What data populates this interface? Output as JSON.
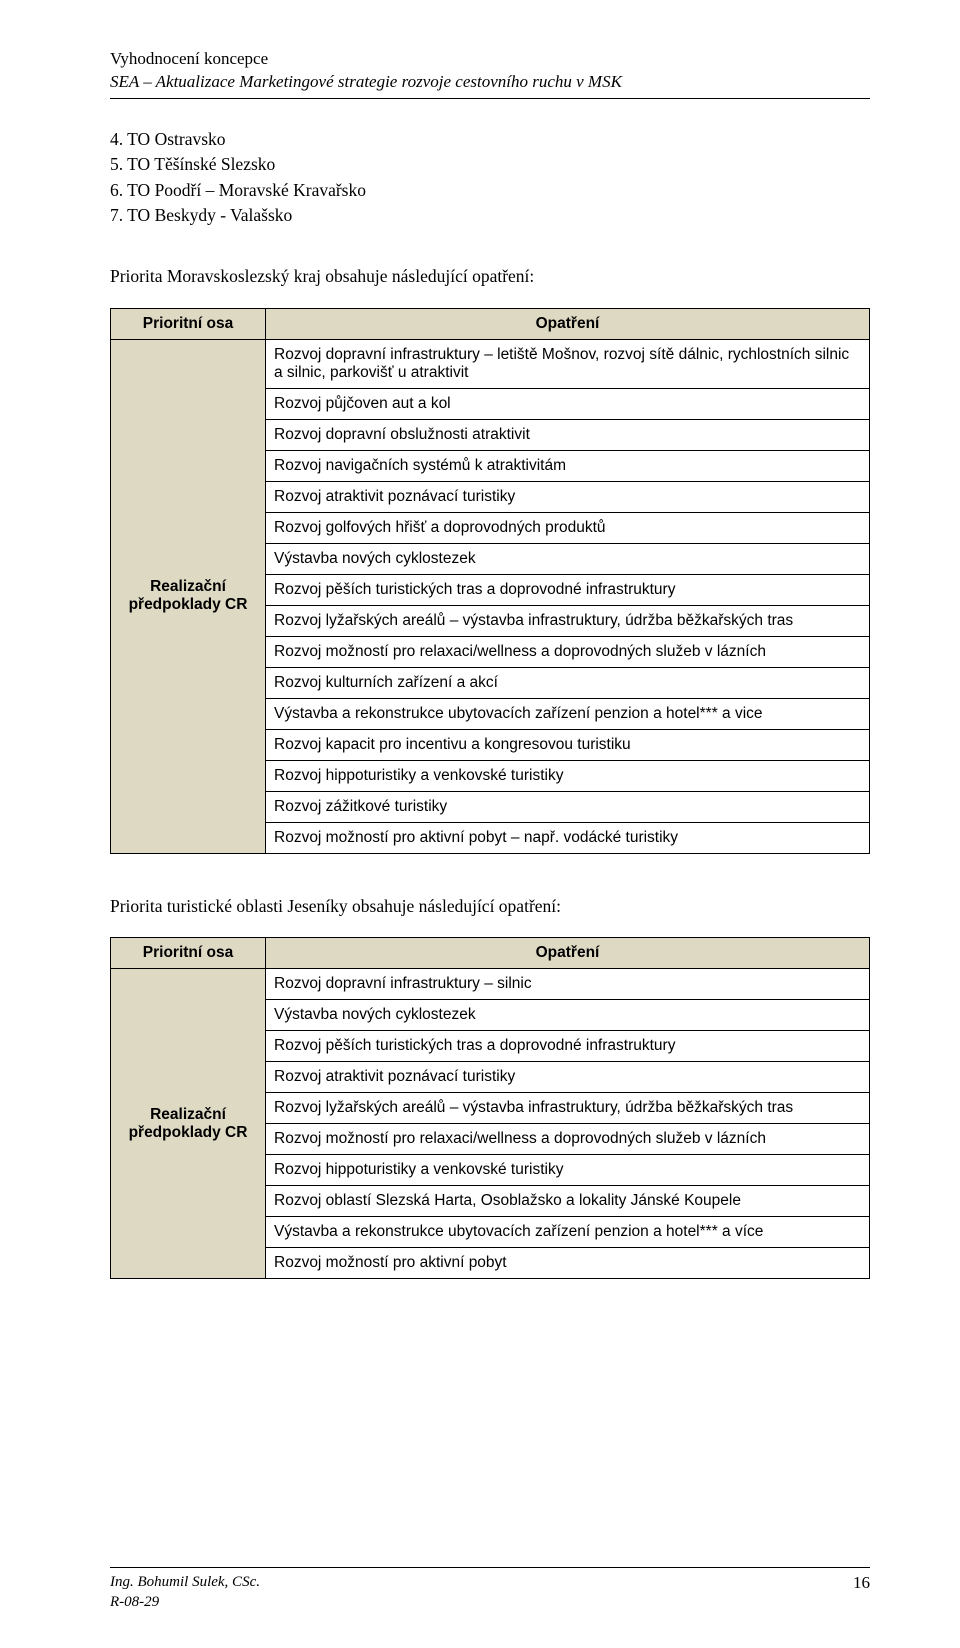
{
  "header": {
    "line1": "Vyhodnocení koncepce",
    "line2": "SEA – Aktualizace Marketingové strategie rozvoje cestovního ruchu v MSK"
  },
  "numbered_list": [
    "4. TO Ostravsko",
    "5. TO Těšínské Slezsko",
    "6. TO Poodří – Moravské Kravařsko",
    "7. TO Beskydy - Valašsko"
  ],
  "intro1": "Priorita Moravskoslezský kraj obsahuje následující opatření:",
  "table1": {
    "col_left": "Prioritní osa",
    "col_right": "Opatření",
    "side_label": "Realizační předpoklady CR",
    "rows": [
      "Rozvoj dopravní infrastruktury – letiště Mošnov, rozvoj sítě dálnic, rychlostních silnic a silnic, parkovišť u atraktivit",
      "Rozvoj půjčoven aut a kol",
      "Rozvoj dopravní obslužnosti atraktivit",
      "Rozvoj navigačních systémů k atraktivitám",
      "Rozvoj atraktivit poznávací turistiky",
      "Rozvoj golfových hřišť a doprovodných produktů",
      "Výstavba nových cyklostezek",
      "Rozvoj pěších turistických tras a doprovodné infrastruktury",
      "Rozvoj lyžařských areálů – výstavba infrastruktury, údržba běžkařských tras",
      "Rozvoj možností pro relaxaci/wellness a doprovodných služeb v lázních",
      "Rozvoj kulturních zařízení a akcí",
      "Výstavba a rekonstrukce ubytovacích zařízení penzion a hotel*** a vice",
      "Rozvoj kapacit pro incentivu a kongresovou turistiku",
      "Rozvoj hippoturistiky a venkovské turistiky",
      "Rozvoj zážitkové turistiky",
      "Rozvoj možností pro aktivní pobyt – např. vodácké turistiky"
    ]
  },
  "intro2": "Priorita turistické oblasti Jeseníky obsahuje následující opatření:",
  "table2": {
    "col_left": "Prioritní osa",
    "col_right": "Opatření",
    "side_label": "Realizační předpoklady CR",
    "rows": [
      "Rozvoj dopravní infrastruktury – silnic",
      "Výstavba nových cyklostezek",
      "Rozvoj pěších turistických tras a doprovodné infrastruktury",
      "Rozvoj atraktivit poznávací turistiky",
      "Rozvoj lyžařských areálů – výstavba infrastruktury, údržba běžkařských tras",
      "Rozvoj možností pro relaxaci/wellness a doprovodných služeb v lázních",
      "Rozvoj hippoturistiky a venkovské turistiky",
      "Rozvoj oblastí Slezská Harta, Osoblažsko a lokality Jánské Koupele",
      "Výstavba a rekonstrukce ubytovacích zařízení penzion a hotel*** a více",
      "Rozvoj možností pro aktivní pobyt"
    ]
  },
  "footer": {
    "author": "Ing. Bohumil Sulek, CSc.",
    "ref": "R-08-29",
    "page": "16"
  },
  "colors": {
    "header_bg": "#ddd9c3",
    "border": "#000000",
    "text": "#000000",
    "page_bg": "#ffffff"
  }
}
